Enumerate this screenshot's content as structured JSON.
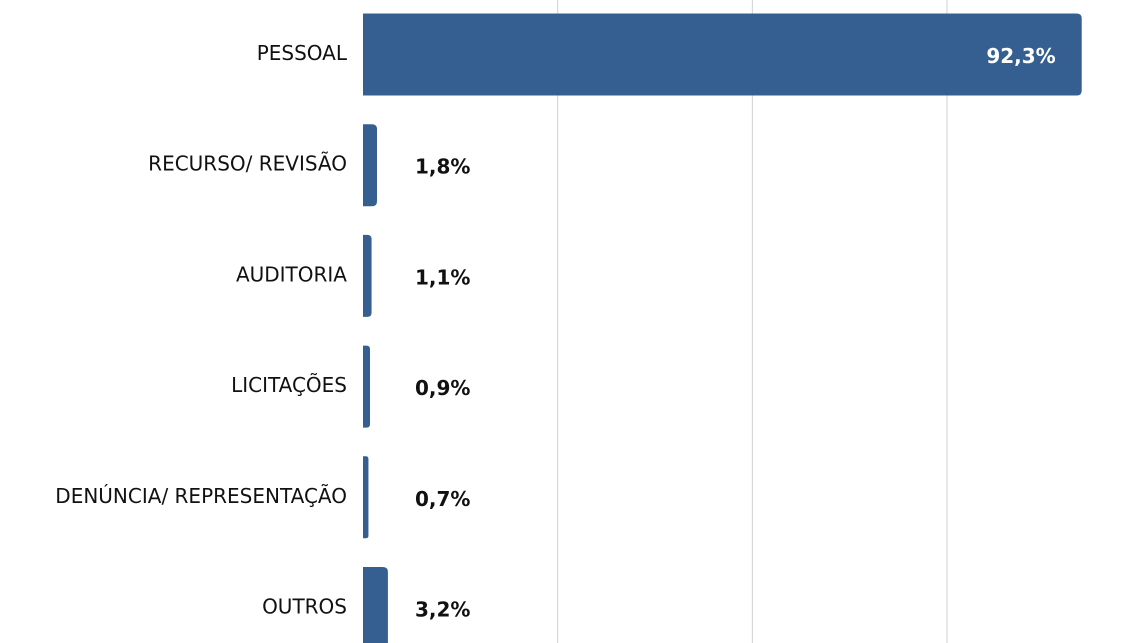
{
  "chart_data": {
    "type": "bar",
    "orientation": "horizontal",
    "categories": [
      "PESSOAL",
      "RECURSO/ REVISÃO",
      "AUDITORIA",
      "LICITAÇÕES",
      "DENÚNCIA/ REPRESENTAÇÃO",
      "OUTROS"
    ],
    "values": [
      92.3,
      1.8,
      1.1,
      0.9,
      0.7,
      3.2
    ],
    "value_labels": [
      "92,3%",
      "1,8%",
      "1,1%",
      "0,9%",
      "0,7%",
      "3,2%"
    ],
    "color": "#365f91",
    "xlim": [
      0,
      98.5
    ],
    "xticks": [
      25,
      50,
      75
    ],
    "grid": true
  }
}
